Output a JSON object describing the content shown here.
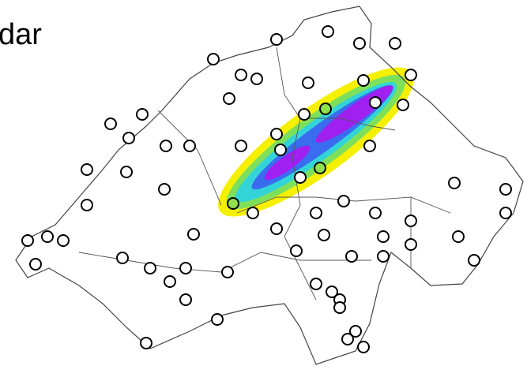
{
  "title": "dar"
}
